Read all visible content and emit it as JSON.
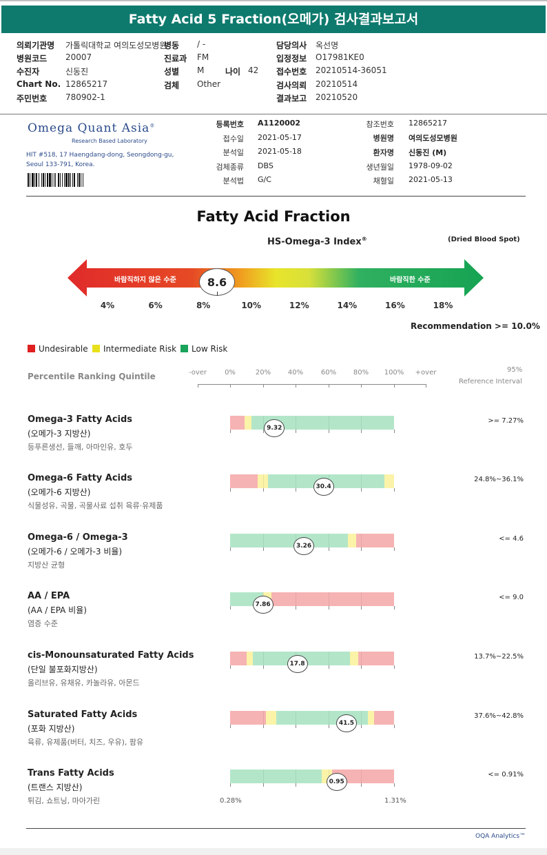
{
  "header": {
    "title": "Fatty Acid 5 Fraction(오메가) 검사결과보고서"
  },
  "request": {
    "institution_label": "의뢰기관명",
    "institution": "가톨릭대학교 여의도성모병원",
    "ward_label": "병동",
    "ward": "/ -",
    "doctor_label": "담당의사",
    "doctor": "옥선명",
    "hospital_code_label": "병원코드",
    "hospital_code": "20007",
    "dept_label": "진료과",
    "dept": "FM",
    "admission_label": "입정정보",
    "admission": "O17981KE0",
    "recipient_label": "수진자",
    "recipient": "신동진",
    "sex_label": "성별",
    "sex": "M",
    "age_label": "나이",
    "age": "42",
    "receipt_label": "접수번호",
    "receipt": "20210514-36051",
    "chart_label": "Chart No.",
    "chart": "12865217",
    "specimen_label": "검체",
    "specimen": "Other",
    "test_req_label": "검사의뢰",
    "test_req": "20210514",
    "rrn_label": "주민번호",
    "rrn": "780902-1",
    "result_label": "결과보고",
    "result": "20210520"
  },
  "lab": {
    "logo": "Omega Quant Asia",
    "logo_mark": "®",
    "logo_sub": "Research Based Laboratory",
    "address_line1": "HIT #518, 17 Haengdang-dong, Seongdong-gu,",
    "address_line2": "Seoul 133-791, Korea."
  },
  "registration": {
    "reg_no_label": "등록번호",
    "reg_no": "A1120002",
    "received_label": "접수일",
    "received": "2021-05-17",
    "analyzed_label": "분석일",
    "analyzed": "2021-05-18",
    "specimen_type_label": "검체종류",
    "specimen_type": "DBS",
    "method_label": "분석법",
    "method": "G/C",
    "ref_no_label": "참조번호",
    "ref_no": "12865217",
    "hospital_label": "병원명",
    "hospital": "여의도성모병원",
    "patient_label": "환자명",
    "patient": "신동진 (M)",
    "dob_label": "생년월일",
    "dob": "1978-09-02",
    "collected_label": "채혈일",
    "collected": "2021-05-13"
  },
  "index": {
    "title": "Fatty Acid Fraction",
    "subtitle": "HS-Omega-3 Index",
    "subtitle_mark": "®",
    "specimen_note": "(Dried Blood Spot)",
    "bad_label": "바람직하지 않은 수준",
    "good_label": "바람직한 수준",
    "value": "8.6",
    "value_num": 8.6,
    "scale": [
      "4%",
      "6%",
      "8%",
      "10%",
      "12%",
      "14%",
      "16%",
      "18%"
    ],
    "recommendation": "Recommendation  >= 10.0%"
  },
  "legend": {
    "undesirable": "Undesirable",
    "intermediate": "Intermediate Risk",
    "low": "Low Risk"
  },
  "colors": {
    "header": "#0e7a6e",
    "red": "#e02020",
    "yellow": "#e8e01a",
    "green": "#1aa35a",
    "bar_red": "#f6b3b3",
    "bar_yellow": "#fbf3a8",
    "bar_green": "#b3e6c9"
  },
  "percentile": {
    "title": "Percentile Ranking Quintile",
    "labels": [
      "-over",
      "0%",
      "20%",
      "40%",
      "60%",
      "80%",
      "100%",
      "+over"
    ],
    "ref_header_1": "95%",
    "ref_header_2": "Reference Interval"
  },
  "rows": [
    {
      "name": "Omega-3 Fatty Acids",
      "sub": "(오메가-3 지방산)",
      "desc": "등푸른생선, 들깨, 아마인유, 호두",
      "ref": ">= 7.27%",
      "value": "9.32",
      "position_pct": 27,
      "segments": [
        [
          "r",
          9
        ],
        [
          "y",
          4
        ],
        [
          "g",
          87
        ]
      ]
    },
    {
      "name": "Omega-6 Fatty Acids",
      "sub": "(오메가-6 지방산)",
      "desc": "식물성유, 곡물, 곡물사료 섭취 육류·유제품",
      "ref": "24.8%~36.1%",
      "value": "30.4",
      "position_pct": 57,
      "segments": [
        [
          "r",
          17
        ],
        [
          "y",
          6
        ],
        [
          "g",
          71
        ],
        [
          "y",
          6
        ]
      ]
    },
    {
      "name": "Omega-6 / Omega-3",
      "sub": "(오메가-6 / 오메가-3 비율)",
      "desc": "지방산 균형",
      "ref": "<= 4.6",
      "value": "3.26",
      "position_pct": 45,
      "segments": [
        [
          "g",
          72
        ],
        [
          "y",
          5
        ],
        [
          "r",
          23
        ]
      ]
    },
    {
      "name": "AA / EPA",
      "sub": "(AA / EPA 비율)",
      "desc": "염증 수준",
      "ref": "<= 9.0",
      "value": "7.86",
      "position_pct": 20,
      "segments": [
        [
          "g",
          20
        ],
        [
          "y",
          5
        ],
        [
          "r",
          75
        ]
      ]
    },
    {
      "name": "cis-Monounsaturated Fatty Acids",
      "sub": "(단일 불포화지방산)",
      "desc": "올리브유, 유채유, 카놀라유, 아몬드",
      "ref": "13.7%~22.5%",
      "value": "17.8",
      "position_pct": 41,
      "segments": [
        [
          "r",
          10
        ],
        [
          "y",
          4
        ],
        [
          "g",
          59
        ],
        [
          "y",
          5
        ],
        [
          "r",
          22
        ]
      ]
    },
    {
      "name": "Saturated Fatty Acids",
      "sub": "(포화 지방산)",
      "desc": "육류, 유제품(버터, 치즈, 우유), 팜유",
      "ref": "37.6%~42.8%",
      "value": "41.5",
      "position_pct": 71,
      "segments": [
        [
          "r",
          22
        ],
        [
          "y",
          6
        ],
        [
          "g",
          56
        ],
        [
          "y",
          4
        ],
        [
          "r",
          12
        ]
      ]
    },
    {
      "name": "Trans Fatty Acids",
      "sub": "(트랜스 지방산)",
      "desc": "튀김, 쇼트닝, 마아가린",
      "ref": "<= 0.91%",
      "value": "0.95",
      "position_pct": 65,
      "segments": [
        [
          "g",
          56
        ],
        [
          "y",
          6
        ],
        [
          "r",
          38
        ]
      ]
    }
  ],
  "trans_range": {
    "min": "0.28%",
    "max": "1.31%"
  },
  "footer": {
    "brand": "OQA Analytics™"
  }
}
